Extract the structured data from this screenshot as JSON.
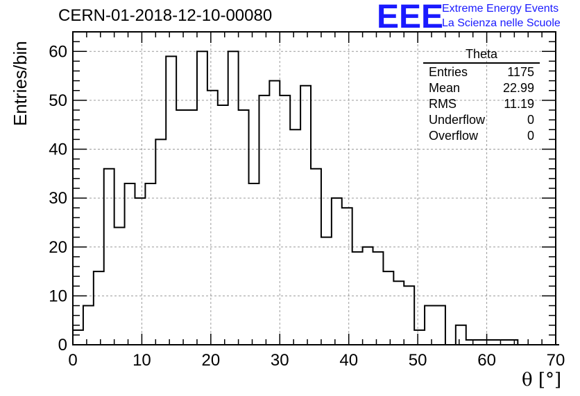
{
  "header": {
    "run_title": "CERN-01-2018-12-10-00080",
    "logo_text": "EEE",
    "logo_line1": "Extreme Energy Events",
    "logo_line2": "La Scienza nelle Scuole",
    "logo_color": "#1a1aff"
  },
  "stats": {
    "title": "Theta",
    "rows": [
      {
        "label": "Entries",
        "value": "1175"
      },
      {
        "label": "Mean",
        "value": "22.99"
      },
      {
        "label": "RMS",
        "value": "11.19"
      },
      {
        "label": "Underflow",
        "value": "0"
      },
      {
        "label": "Overflow",
        "value": "0"
      }
    ]
  },
  "chart_data": {
    "type": "bar",
    "style": "step-histogram",
    "xlabel": "θ [°]",
    "ylabel": "Entries/bin",
    "xlim": [
      0,
      70
    ],
    "ylim": [
      0,
      64
    ],
    "grid": true,
    "bin_width": 1.5,
    "x_ticks": [
      0,
      10,
      20,
      30,
      40,
      50,
      60,
      70
    ],
    "y_ticks": [
      0,
      10,
      20,
      30,
      40,
      50,
      60
    ],
    "values": [
      3,
      8,
      15,
      36,
      24,
      33,
      30,
      33,
      42,
      59,
      48,
      48,
      60,
      52,
      49,
      60,
      48,
      33,
      51,
      54,
      51,
      44,
      53,
      36,
      22,
      30,
      28,
      19,
      20,
      19,
      15,
      13,
      12,
      3,
      8,
      8,
      0,
      4,
      1,
      1,
      1,
      1,
      1,
      0,
      0,
      0,
      0
    ]
  }
}
